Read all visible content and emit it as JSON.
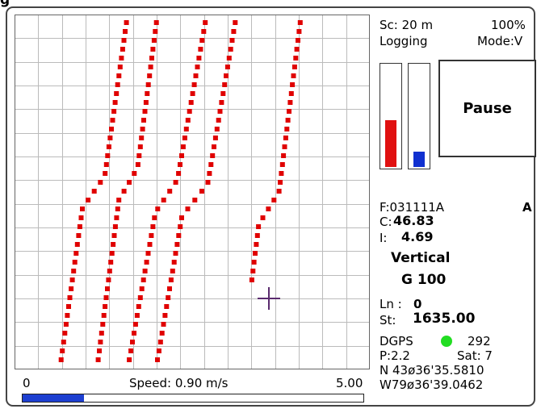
{
  "app": {
    "title_fragment": "g"
  },
  "status": {
    "scale": "Sc:  20 m",
    "zoom": "100%",
    "logging": "Logging",
    "mode": "Mode:V"
  },
  "gauges": {
    "left_color": "#e01010",
    "right_color": "#1030d0",
    "left_level": 0.45,
    "right_level": 0.15
  },
  "pause_button": {
    "label": "Pause"
  },
  "info": {
    "file": "F:031111A",
    "file_flag": "A",
    "c_label": "C:",
    "c_value": "46.83",
    "i_label": "I:",
    "i_value": "4.69",
    "orientation": "Vertical",
    "g_value": "G 100",
    "ln_label": "Ln :",
    "ln_value": "0",
    "st_label": "St:",
    "st_value": "1635.00",
    "dgps_label": "DGPS",
    "dgps_color": "#22dd22",
    "dgps_value": "292",
    "p_value": "P:2.2",
    "sat_value": "Sat:  7",
    "latitude": "N 43ø36'35.5810",
    "longitude": "W79ø36'39.0462"
  },
  "speed": {
    "min_label": "0",
    "label": "Speed: 0.90 m/s",
    "max_label": "5.00",
    "level": 0.18,
    "bar_color": "#1d3fd0"
  },
  "map": {
    "track_color": "#e00000",
    "cursor_color": "#5a2b6e",
    "grid_color": "#bbbbbb"
  }
}
